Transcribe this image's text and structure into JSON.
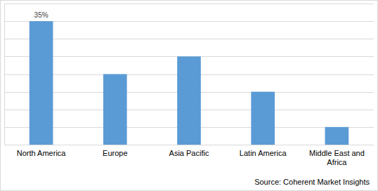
{
  "chart_data": {
    "type": "bar",
    "categories": [
      "North America",
      "Europe",
      "Asia Pacific",
      "Latin America",
      "Middle East and Africa"
    ],
    "values": [
      35,
      20,
      25,
      15,
      5
    ],
    "value_labels": [
      "35%",
      null,
      null,
      null,
      null
    ],
    "data_labels": true,
    "color": "#5b9bd5",
    "ylim": [
      0,
      40
    ],
    "yticks": [
      0,
      5,
      10,
      15,
      20,
      25,
      30,
      35,
      40
    ],
    "grid": true,
    "tick_labels": "x",
    "annotations": [
      {
        "text": "Source: Coherent Market Insights"
      }
    ]
  }
}
